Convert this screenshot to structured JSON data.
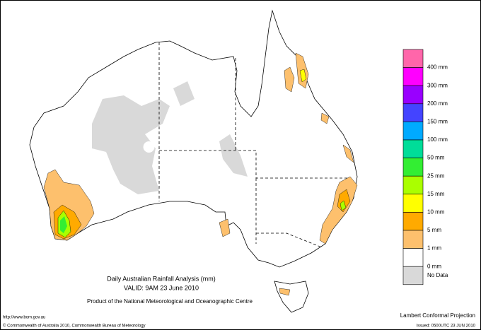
{
  "title": "Daily Australian Rainfall Analysis (mm)",
  "valid": "VALID: 9AM 23 June 2010",
  "product": "Product of the National Meteorological and Oceanographic Centre",
  "url": "http://www.bom.gov.au",
  "copyright": "© Commonwealth of Australia 2010, Commonwealth Bureau of Meteorology",
  "projection": "Lambert Conformal Projection",
  "issued": "Issued: 0500UTC 23 JUN 2010",
  "legend": [
    {
      "label": "400 mm",
      "color": "#ff66aa"
    },
    {
      "label": "300 mm",
      "color": "#ff00ff"
    },
    {
      "label": "200 mm",
      "color": "#9900ff"
    },
    {
      "label": "150 mm",
      "color": "#4444ff"
    },
    {
      "label": "100 mm",
      "color": "#00aaff"
    },
    {
      "label": "50 mm",
      "color": "#00dd99"
    },
    {
      "label": "25 mm",
      "color": "#33ee33"
    },
    {
      "label": "15 mm",
      "color": "#aaff00"
    },
    {
      "label": "10 mm",
      "color": "#ffff00"
    },
    {
      "label": "5 mm",
      "color": "#ffaa00"
    },
    {
      "label": "1 mm",
      "color": "#fdc06d"
    },
    {
      "label": "0 mm",
      "color": "#ffffff"
    },
    {
      "label": "No Data",
      "color": "#d9d9d9"
    }
  ]
}
